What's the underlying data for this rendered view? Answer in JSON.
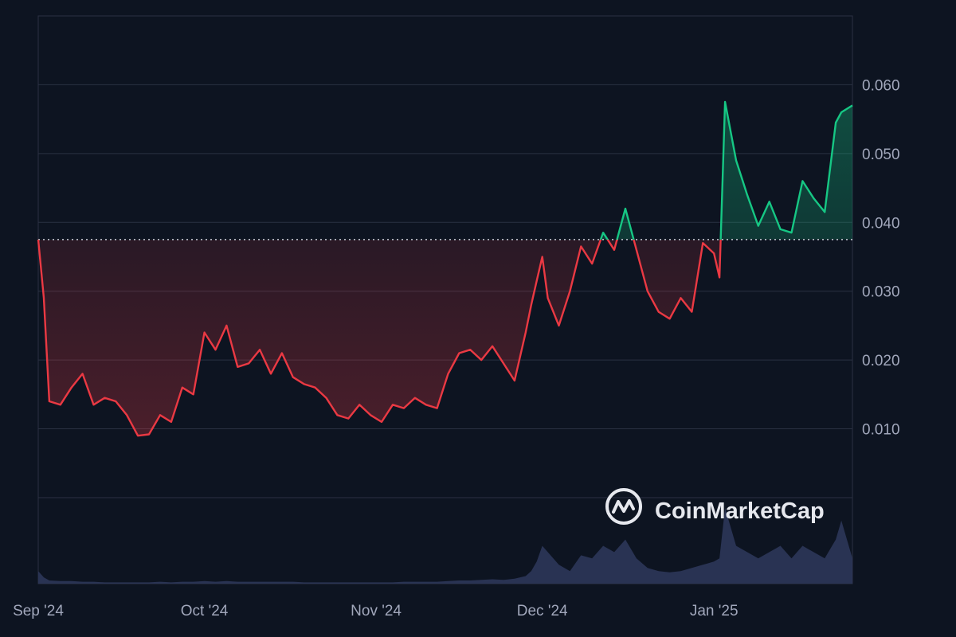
{
  "watermark": {
    "text": "CoinMarketCap",
    "icon": "coinmarketcap-logo-icon"
  },
  "colors": {
    "background": "#0d1421",
    "grid": "#2a3142",
    "up": "#16c784",
    "down": "#ea3943",
    "baseline": "#c8ccd6",
    "volume": "#2b3556"
  },
  "chart_data": {
    "type": "line",
    "title": "",
    "xlabel": "",
    "ylabel": "",
    "x_ticks": [
      "Sep '24",
      "Oct '24",
      "Nov '24",
      "Dec '24",
      "Jan '25"
    ],
    "y_ticks": [
      "0.010",
      "0.020",
      "0.030",
      "0.040",
      "0.050",
      "0.060"
    ],
    "ylim": [
      -0.0125,
      0.07
    ],
    "xlim": [
      "2024-09-01",
      "2025-01-26"
    ],
    "grid": true,
    "baseline": 0.0375,
    "series": [
      {
        "x": [
          "2024-09-01",
          "2024-09-02",
          "2024-09-03",
          "2024-09-05",
          "2024-09-07",
          "2024-09-09",
          "2024-09-11",
          "2024-09-13",
          "2024-09-15",
          "2024-09-17",
          "2024-09-19",
          "2024-09-21",
          "2024-09-23",
          "2024-09-25",
          "2024-09-27",
          "2024-09-29",
          "2024-10-01",
          "2024-10-03",
          "2024-10-05",
          "2024-10-07",
          "2024-10-09",
          "2024-10-11",
          "2024-10-13",
          "2024-10-15",
          "2024-10-17",
          "2024-10-19",
          "2024-10-21",
          "2024-10-23",
          "2024-10-25",
          "2024-10-27",
          "2024-10-29",
          "2024-10-31",
          "2024-11-02",
          "2024-11-04",
          "2024-11-06",
          "2024-11-08",
          "2024-11-10",
          "2024-11-12",
          "2024-11-14",
          "2024-11-16",
          "2024-11-18",
          "2024-11-20",
          "2024-11-22",
          "2024-11-24",
          "2024-11-26",
          "2024-11-28",
          "2024-11-29",
          "2024-11-30",
          "2024-12-01",
          "2024-12-02",
          "2024-12-04",
          "2024-12-06",
          "2024-12-08",
          "2024-12-10",
          "2024-12-12",
          "2024-12-14",
          "2024-12-16",
          "2024-12-18",
          "2024-12-20",
          "2024-12-22",
          "2024-12-24",
          "2024-12-26",
          "2024-12-28",
          "2024-12-30",
          "2025-01-01",
          "2025-01-02",
          "2025-01-03",
          "2025-01-05",
          "2025-01-07",
          "2025-01-09",
          "2025-01-11",
          "2025-01-13",
          "2025-01-15",
          "2025-01-17",
          "2025-01-19",
          "2025-01-21",
          "2025-01-23",
          "2025-01-24",
          "2025-01-26"
        ],
        "values": [
          0.0375,
          0.029,
          0.014,
          0.0135,
          0.016,
          0.018,
          0.0135,
          0.0145,
          0.014,
          0.012,
          0.009,
          0.0092,
          0.012,
          0.011,
          0.016,
          0.015,
          0.024,
          0.0215,
          0.025,
          0.019,
          0.0195,
          0.0215,
          0.018,
          0.021,
          0.0175,
          0.0165,
          0.016,
          0.0145,
          0.012,
          0.0115,
          0.0135,
          0.012,
          0.011,
          0.0135,
          0.013,
          0.0145,
          0.0135,
          0.013,
          0.018,
          0.021,
          0.0215,
          0.02,
          0.022,
          0.0195,
          0.017,
          0.024,
          0.028,
          0.0315,
          0.035,
          0.029,
          0.025,
          0.03,
          0.0365,
          0.034,
          0.0385,
          0.036,
          0.042,
          0.036,
          0.03,
          0.027,
          0.026,
          0.029,
          0.027,
          0.037,
          0.0355,
          0.032,
          0.0575,
          0.049,
          0.044,
          0.0395,
          0.043,
          0.039,
          0.0385,
          0.046,
          0.0435,
          0.0415,
          0.0545,
          0.056,
          0.057
        ]
      }
    ],
    "volume": [
      0.02,
      0.01,
      0.005,
      0.004,
      0.004,
      0.003,
      0.003,
      0.002,
      0.002,
      0.002,
      0.002,
      0.002,
      0.003,
      0.002,
      0.003,
      0.003,
      0.004,
      0.003,
      0.004,
      0.003,
      0.003,
      0.003,
      0.003,
      0.003,
      0.003,
      0.002,
      0.002,
      0.002,
      0.002,
      0.002,
      0.002,
      0.002,
      0.002,
      0.002,
      0.003,
      0.003,
      0.003,
      0.003,
      0.004,
      0.005,
      0.005,
      0.006,
      0.007,
      0.006,
      0.008,
      0.012,
      0.02,
      0.035,
      0.06,
      0.05,
      0.03,
      0.02,
      0.045,
      0.04,
      0.06,
      0.05,
      0.07,
      0.04,
      0.025,
      0.02,
      0.018,
      0.02,
      0.025,
      0.03,
      0.035,
      0.04,
      0.12,
      0.06,
      0.05,
      0.04,
      0.05,
      0.06,
      0.04,
      0.06,
      0.05,
      0.04,
      0.07,
      0.1,
      0.04
    ]
  }
}
